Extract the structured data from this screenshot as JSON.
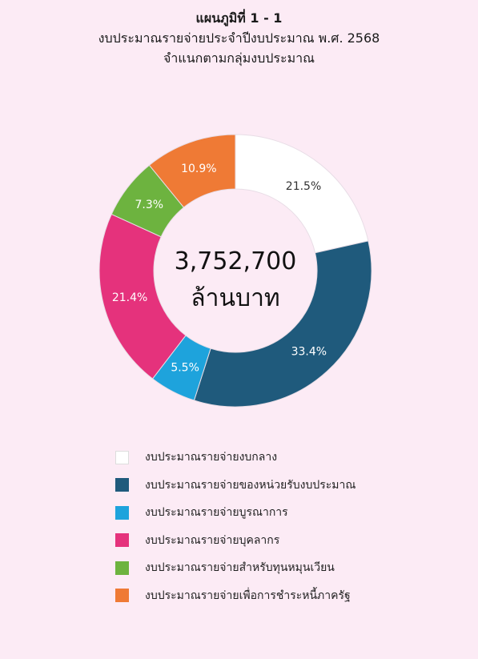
{
  "header": {
    "line1": "แผนภูมิที่ 1 - 1",
    "line2": "งบประมาณรายจ่ายประจำปีงบประมาณ พ.ศ. 2568",
    "line3": "จำแนกตามกลุ่มงบประมาณ"
  },
  "chart_data": {
    "type": "pie",
    "donut": true,
    "center_value": "3,752,700",
    "center_unit": "ล้านบาท",
    "legend_position": "bottom",
    "slices": [
      {
        "label": "งบประมาณรายจ่ายงบกลาง",
        "value": 21.5,
        "display": "21.5%",
        "color": "#ffffff",
        "label_color": "#333333"
      },
      {
        "label": "งบประมาณรายจ่ายของหน่วยรับงบประมาณ",
        "value": 33.4,
        "display": "33.4%",
        "color": "#1f5a7c",
        "label_color": "#ffffff"
      },
      {
        "label": "งบประมาณรายจ่ายบูรณาการ",
        "value": 5.5,
        "display": "5.5%",
        "color": "#1ea3dc",
        "label_color": "#ffffff"
      },
      {
        "label": "งบประมาณรายจ่ายบุคลากร",
        "value": 21.4,
        "display": "21.4%",
        "color": "#e5327c",
        "label_color": "#ffffff"
      },
      {
        "label": "งบประมาณรายจ่ายสำหรับทุนหมุนเวียน",
        "value": 7.3,
        "display": "7.3%",
        "color": "#6db33f",
        "label_color": "#ffffff"
      },
      {
        "label": "งบประมาณรายจ่ายเพื่อการชำระหนี้ภาครัฐ",
        "value": 10.9,
        "display": "10.9%",
        "color": "#ef7a35",
        "label_color": "#ffffff"
      }
    ]
  }
}
